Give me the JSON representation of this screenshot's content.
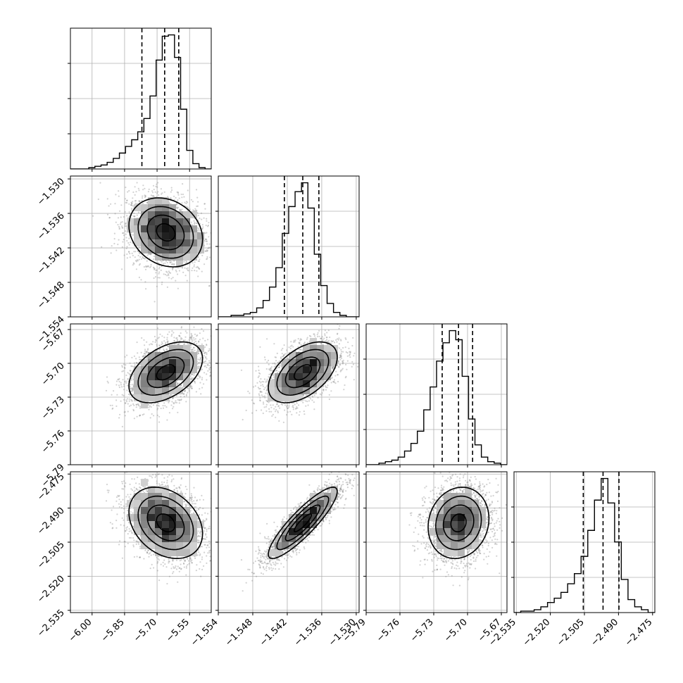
{
  "chart_data": {
    "type": "corner",
    "grid": true,
    "parameters": [
      {
        "range": [
          -6.1,
          -5.45
        ],
        "ticks": [
          {
            "v": -6.0,
            "label": "−6.00"
          },
          {
            "v": -5.85,
            "label": "−5.85"
          },
          {
            "v": -5.7,
            "label": "−5.70"
          },
          {
            "v": -5.55,
            "label": "−5.55"
          }
        ],
        "quantiles": [
          -5.77,
          -5.665,
          -5.6
        ],
        "peak": -5.66,
        "histogram": [
          0,
          0,
          0,
          1,
          2,
          3,
          5,
          8,
          12,
          17,
          22,
          28,
          38,
          55,
          82,
          100,
          101,
          84,
          45,
          14,
          4,
          1,
          0
        ]
      },
      {
        "range": [
          -1.554,
          -1.5295
        ],
        "ticks": [
          {
            "v": -1.554,
            "label": "−1.554"
          },
          {
            "v": -1.548,
            "label": "−1.548"
          },
          {
            "v": -1.542,
            "label": "−1.542"
          },
          {
            "v": -1.536,
            "label": "−1.536"
          },
          {
            "v": -1.53,
            "label": "−1.530"
          }
        ],
        "quantiles": [
          -1.5425,
          -1.5393,
          -1.5365
        ],
        "peak": -1.5393,
        "histogram": [
          0,
          0,
          1,
          1,
          2,
          3,
          6,
          11,
          20,
          33,
          56,
          74,
          84,
          90,
          73,
          42,
          21,
          9,
          3,
          1,
          0,
          0
        ]
      },
      {
        "range": [
          -5.79,
          -5.665
        ],
        "ticks": [
          {
            "v": -5.79,
            "label": "−5.79"
          },
          {
            "v": -5.76,
            "label": "−5.76"
          },
          {
            "v": -5.73,
            "label": "−5.73"
          },
          {
            "v": -5.7,
            "label": "−5.70"
          },
          {
            "v": -5.67,
            "label": "−5.67"
          }
        ],
        "quantiles": [
          -5.7225,
          -5.708,
          -5.6955
        ],
        "peak": -5.708,
        "histogram": [
          0,
          0,
          1,
          2,
          3,
          5,
          9,
          14,
          22,
          36,
          51,
          68,
          80,
          88,
          82,
          58,
          30,
          13,
          5,
          2,
          1,
          0
        ]
      },
      {
        "range": [
          -2.536,
          -2.474
        ],
        "ticks": [
          {
            "v": -2.535,
            "label": "−2.535"
          },
          {
            "v": -2.52,
            "label": "−2.520"
          },
          {
            "v": -2.505,
            "label": "−2.505"
          },
          {
            "v": -2.49,
            "label": "−2.490"
          },
          {
            "v": -2.475,
            "label": "−2.475"
          }
        ],
        "quantiles": [
          -2.5055,
          -2.4968,
          -2.4898
        ],
        "peak": -2.4965,
        "histogram": [
          0,
          1,
          1,
          2,
          4,
          7,
          10,
          14,
          20,
          27,
          39,
          57,
          78,
          93,
          76,
          49,
          23,
          9,
          4,
          2,
          0
        ]
      }
    ],
    "correlations": [
      {
        "i": 1,
        "j": 0,
        "rho": -0.2
      },
      {
        "i": 2,
        "j": 0,
        "rho": 0.45
      },
      {
        "i": 2,
        "j": 1,
        "rho": 0.5
      },
      {
        "i": 3,
        "j": 0,
        "rho": -0.3
      },
      {
        "i": 3,
        "j": 1,
        "rho": 0.88
      },
      {
        "i": 3,
        "j": 2,
        "rho": 0.12
      }
    ]
  }
}
